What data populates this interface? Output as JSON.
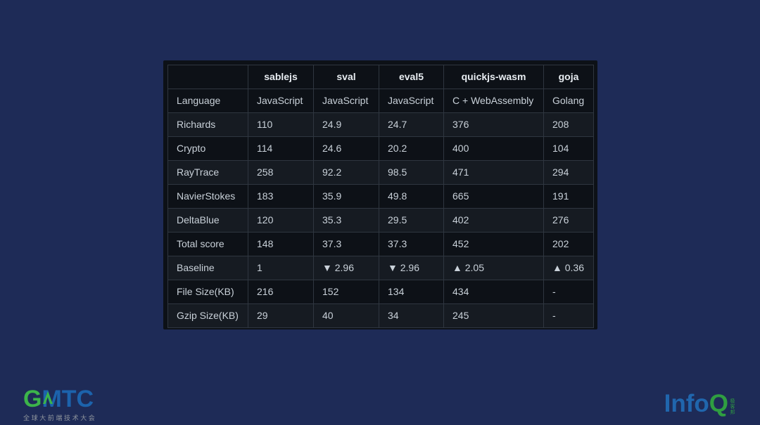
{
  "colors": {
    "page-bg": "#1e2b57",
    "panel-bg": "#0d1117",
    "row-alt-bg": "#161b22",
    "table-border": "#2f3640",
    "header-text": "#e8edf2",
    "cell-text": "#c9d1d9",
    "gmtc-green": "#3cb44a",
    "gmtc-blue": "#1c63ac",
    "gmtc-tagline": "#8f959d",
    "infoq-blue": "#2066ad",
    "infoq-green": "#2f9e41"
  },
  "table": {
    "columns": [
      "",
      "sablejs",
      "sval",
      "eval5",
      "quickjs-wasm",
      "goja"
    ],
    "rows": [
      {
        "label": "Language",
        "values": [
          "JavaScript",
          "JavaScript",
          "JavaScript",
          "C + WebAssembly",
          "Golang"
        ]
      },
      {
        "label": "Richards",
        "values": [
          "110",
          "24.9",
          "24.7",
          "376",
          "208"
        ]
      },
      {
        "label": "Crypto",
        "values": [
          "114",
          "24.6",
          "20.2",
          "400",
          "104"
        ]
      },
      {
        "label": "RayTrace",
        "values": [
          "258",
          "92.2",
          "98.5",
          "471",
          "294"
        ]
      },
      {
        "label": "NavierStokes",
        "values": [
          "183",
          "35.9",
          "49.8",
          "665",
          "191"
        ]
      },
      {
        "label": "DeltaBlue",
        "values": [
          "120",
          "35.3",
          "29.5",
          "402",
          "276"
        ]
      },
      {
        "label": "Total score",
        "values": [
          "148",
          "37.3",
          "37.3",
          "452",
          "202"
        ]
      },
      {
        "label": "Baseline",
        "values": [
          "1",
          "▼ 2.96",
          "▼ 2.96",
          "▲ 2.05",
          "▲ 0.36"
        ]
      },
      {
        "label": "File Size(KB)",
        "values": [
          "216",
          "152",
          "134",
          "434",
          "-"
        ]
      },
      {
        "label": "Gzip Size(KB)",
        "values": [
          "29",
          "40",
          "34",
          "245",
          "-"
        ]
      }
    ]
  },
  "footer": {
    "gmtc": {
      "letter_g": "G",
      "letters_mtc": "MTC",
      "tagline": "全球大前端技术大会"
    },
    "infoq": {
      "text_info": "Info",
      "text_q": "Q",
      "vertical_label": "极客邦"
    }
  }
}
